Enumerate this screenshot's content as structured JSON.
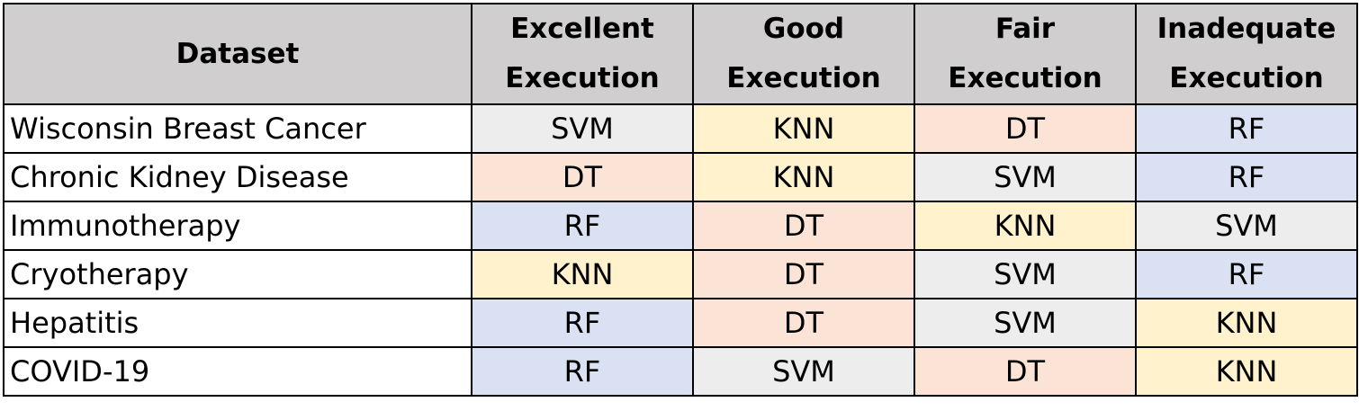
{
  "table": {
    "headers": [
      {
        "line1": "Dataset",
        "line2": ""
      },
      {
        "line1": "Excellent",
        "line2": "Execution"
      },
      {
        "line1": "Good",
        "line2": "Execution"
      },
      {
        "line1": "Fair",
        "line2": "Execution"
      },
      {
        "line1": "Inadequate",
        "line2": "Execution"
      }
    ],
    "rows": [
      {
        "dataset": "Wisconsin Breast Cancer",
        "cells": [
          "SVM",
          "KNN",
          "DT",
          "RF"
        ]
      },
      {
        "dataset": "Chronic Kidney Disease",
        "cells": [
          "DT",
          "KNN",
          "SVM",
          "RF"
        ]
      },
      {
        "dataset": "Immunotherapy",
        "cells": [
          "RF",
          "DT",
          "KNN",
          "SVM"
        ]
      },
      {
        "dataset": "Cryotherapy",
        "cells": [
          "KNN",
          "DT",
          "SVM",
          "RF"
        ]
      },
      {
        "dataset": "Hepatitis",
        "cells": [
          "RF",
          "DT",
          "SVM",
          "KNN"
        ]
      },
      {
        "dataset": "COVID-19",
        "cells": [
          "RF",
          "SVM",
          "DT",
          "KNN"
        ]
      }
    ]
  },
  "colors": {
    "header_bg": "#d0cece",
    "SVM": "#ededed",
    "KNN": "#fff2cc",
    "DT": "#fbe4d5",
    "RF": "#d9e1f2"
  }
}
